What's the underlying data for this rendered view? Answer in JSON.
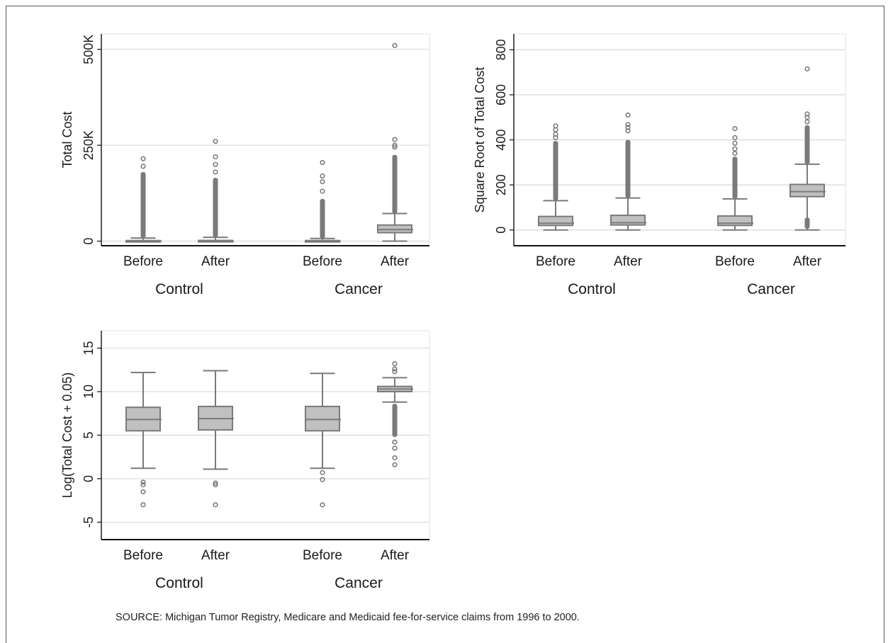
{
  "source_note": "SOURCE:  Michigan Tumor Registry, Medicare and Medicaid fee-for-service claims from 1996 to 2000.",
  "colors": {
    "box_fill": "#c0c0c0",
    "box_stroke": "#7a7a7a",
    "grid": "#d9d9d9",
    "axis": "#111111"
  },
  "chart_data": [
    {
      "type": "box",
      "ylabel": "Total Cost",
      "ylim": [
        -12000,
        540000
      ],
      "yticks": [
        0,
        250000,
        500000
      ],
      "ytick_labels": [
        "0",
        "250K",
        "500K"
      ],
      "groups": [
        "Control",
        "Cancer"
      ],
      "categories": [
        "Before",
        "After",
        "Before",
        "After"
      ],
      "boxes": [
        {
          "group": "Control",
          "label": "Before",
          "min": 0,
          "q1": 0,
          "median": 0,
          "q3": 1500,
          "whisker_high": 8000,
          "outlier_range": [
            8000,
            180000
          ],
          "outliers": [
            195000,
            215000
          ]
        },
        {
          "group": "Control",
          "label": "After",
          "min": 0,
          "q1": 0,
          "median": 0,
          "q3": 1800,
          "whisker_high": 10000,
          "outlier_range": [
            10000,
            165000
          ],
          "outliers": [
            180000,
            200000,
            220000,
            260000
          ]
        },
        {
          "group": "Cancer",
          "label": "Before",
          "min": 0,
          "q1": 0,
          "median": 0,
          "q3": 1500,
          "whisker_high": 7000,
          "outlier_range": [
            7000,
            110000
          ],
          "outliers": [
            130000,
            155000,
            170000,
            205000
          ]
        },
        {
          "group": "Cancer",
          "label": "After",
          "min": 0,
          "q1": 22000,
          "median": 30000,
          "q3": 42000,
          "whisker_high": 72000,
          "outlier_range": [
            72000,
            225000
          ],
          "outliers": [
            245000,
            250000,
            265000,
            510000
          ]
        }
      ]
    },
    {
      "type": "box",
      "ylabel": "Square Root of Total Cost",
      "ylim": [
        -70,
        870
      ],
      "yticks": [
        0,
        200,
        400,
        600,
        800
      ],
      "ytick_labels": [
        "0",
        "200",
        "400",
        "600",
        "800"
      ],
      "groups": [
        "Control",
        "Cancer"
      ],
      "categories": [
        "Before",
        "After",
        "Before",
        "After"
      ],
      "boxes": [
        {
          "group": "Control",
          "label": "Before",
          "min": 0,
          "q1": 20,
          "median": 30,
          "q3": 60,
          "whisker_high": 130,
          "outlier_range": [
            130,
            395
          ],
          "outliers": [
            410,
            425,
            445,
            462
          ]
        },
        {
          "group": "Control",
          "label": "After",
          "min": 0,
          "q1": 22,
          "median": 32,
          "q3": 65,
          "whisker_high": 142,
          "outlier_range": [
            142,
            400
          ],
          "outliers": [
            440,
            455,
            468,
            510
          ]
        },
        {
          "group": "Cancer",
          "label": "Before",
          "min": 0,
          "q1": 20,
          "median": 30,
          "q3": 62,
          "whisker_high": 138,
          "outlier_range": [
            138,
            325
          ],
          "outliers": [
            340,
            360,
            385,
            410,
            450
          ]
        },
        {
          "group": "Cancer",
          "label": "After",
          "min": 0,
          "q1": 148,
          "median": 170,
          "q3": 202,
          "whisker_high": 292,
          "outlier_range": [
            292,
            465
          ],
          "outliers": [
            480,
            500,
            515,
            715
          ],
          "low_outlier_range": [
            5,
            55
          ]
        }
      ]
    },
    {
      "type": "box",
      "ylabel": "Log(Total Cost + 0.05)",
      "ylim": [
        -7,
        17
      ],
      "yticks": [
        -5,
        0,
        5,
        10,
        15
      ],
      "ytick_labels": [
        "-5",
        "0",
        "5",
        "10",
        "15"
      ],
      "groups": [
        "Control",
        "Cancer"
      ],
      "categories": [
        "Before",
        "After",
        "Before",
        "After"
      ],
      "boxes": [
        {
          "group": "Control",
          "label": "Before",
          "min": 1.2,
          "q1": 5.5,
          "median": 6.8,
          "q3": 8.2,
          "whisker_high": 12.2,
          "outliers": [
            -0.4,
            -0.7,
            -1.5,
            -3.0
          ]
        },
        {
          "group": "Control",
          "label": "After",
          "min": 1.1,
          "q1": 5.6,
          "median": 6.9,
          "q3": 8.3,
          "whisker_high": 12.4,
          "outliers": [
            -0.5,
            -0.7,
            -3.0
          ]
        },
        {
          "group": "Cancer",
          "label": "Before",
          "min": 1.2,
          "q1": 5.5,
          "median": 6.8,
          "q3": 8.3,
          "whisker_high": 12.1,
          "outliers": [
            0.7,
            -0.1,
            -3.0
          ]
        },
        {
          "group": "Cancer",
          "label": "After",
          "min": 8.8,
          "q1": 10.0,
          "median": 10.3,
          "q3": 10.6,
          "whisker_high": 11.6,
          "outliers": [
            12.3,
            12.6,
            13.2,
            4.2,
            3.5,
            2.4,
            1.6
          ],
          "low_outlier_range": [
            4.8,
            8.6
          ]
        }
      ]
    }
  ]
}
